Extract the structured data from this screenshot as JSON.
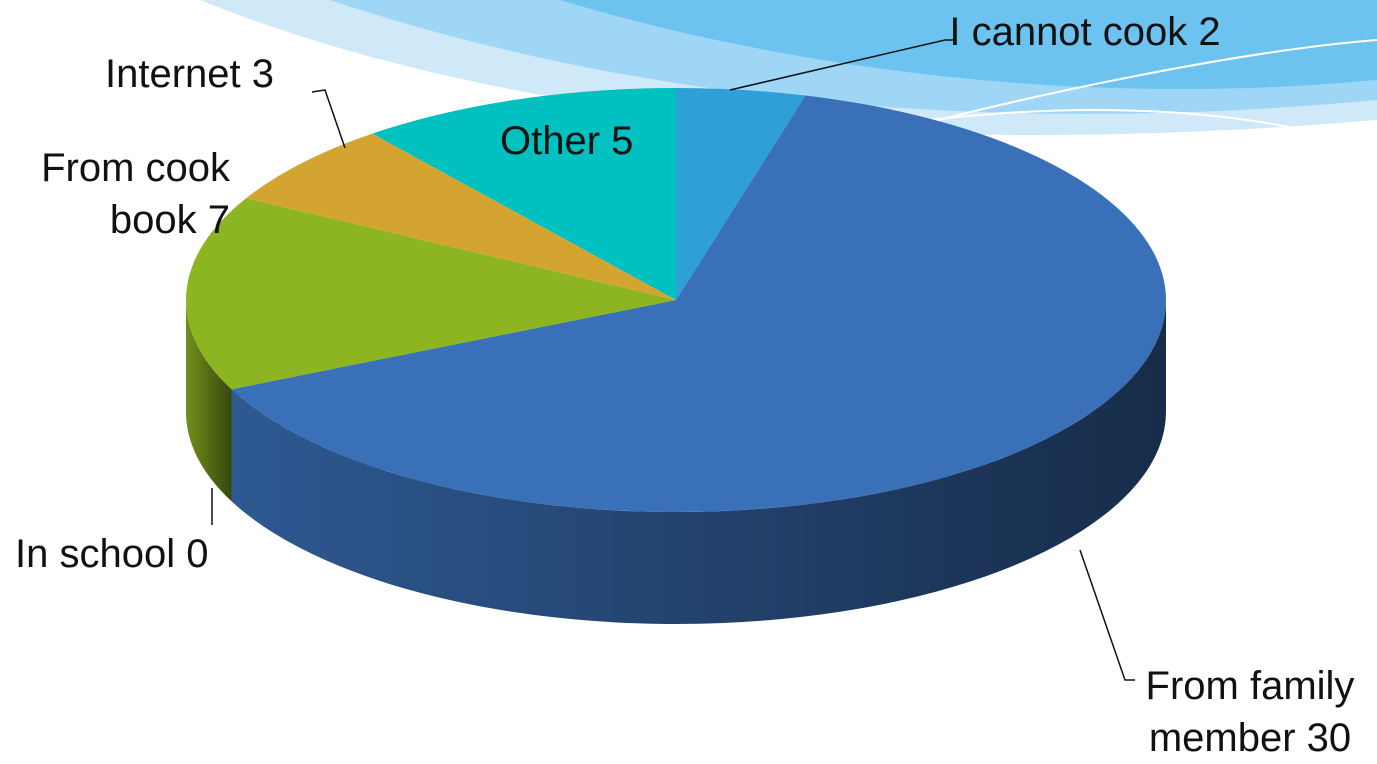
{
  "chart_data": {
    "type": "pie3d",
    "categories": [
      "I cannot cook",
      "From family member",
      "In school",
      "From cook book",
      "Internet",
      "Other"
    ],
    "values": [
      2,
      30,
      0,
      7,
      3,
      5
    ],
    "colors": [
      "#2e9fd8",
      "#3a70b7",
      "#8a9ed0",
      "#8db522",
      "#d4a431",
      "#00c0c0"
    ]
  }
}
